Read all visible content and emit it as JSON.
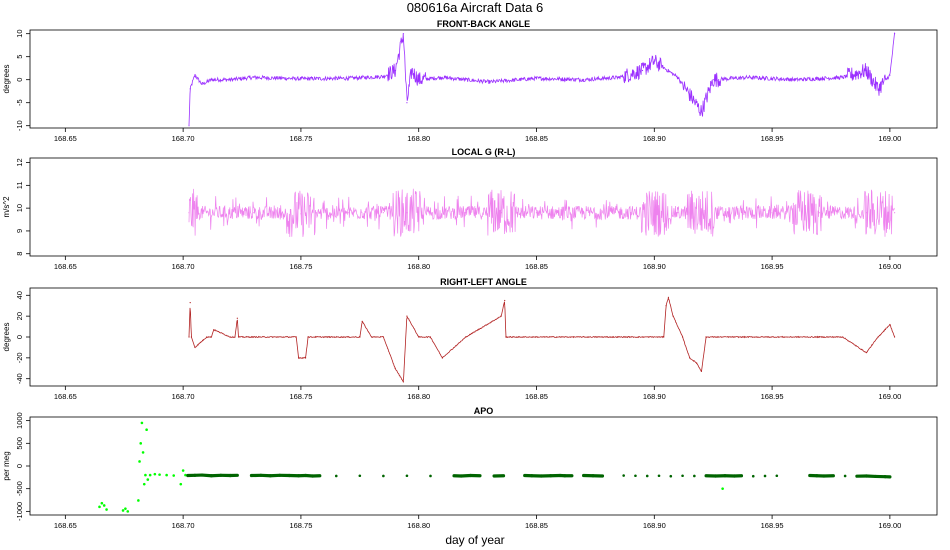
{
  "figure": {
    "title": "080616a    Aircraft Data 6",
    "xlabel": "day of year"
  },
  "chart_data": [
    {
      "type": "line",
      "title": "FRONT-BACK ANGLE",
      "ylabel": "degrees",
      "xlim": [
        168.635,
        169.02
      ],
      "ylim": [
        -10.5,
        10.8
      ],
      "xticks": [
        "168.65",
        "168.70",
        "168.75",
        "168.80",
        "168.85",
        "168.90",
        "168.95",
        "169.00"
      ],
      "yticks": [
        -10,
        -5,
        0,
        5,
        10
      ],
      "color": "#9b30ff",
      "series": [
        {
          "x": [
            168.7025,
            168.703,
            168.705,
            168.708,
            168.712,
            168.72,
            168.73,
            168.75,
            168.77,
            168.785,
            168.79,
            168.7935,
            168.795,
            168.797,
            168.8,
            168.81,
            168.83,
            168.85,
            168.87,
            168.885,
            168.895,
            168.9,
            168.91,
            168.92,
            168.925,
            168.94,
            168.96,
            168.98,
            168.99,
            168.995,
            169.0,
            169.002
          ],
          "y": [
            -10,
            -2,
            1,
            -1,
            0,
            0,
            0.5,
            0.2,
            0.3,
            0.7,
            2,
            10,
            -5,
            2,
            0,
            0.5,
            -0.5,
            0.3,
            0,
            0.5,
            2,
            4,
            0.5,
            -7,
            0,
            0.5,
            0,
            0.5,
            2,
            -2,
            1,
            10
          ]
        }
      ]
    },
    {
      "type": "line",
      "title": "LOCAL G (R-L)",
      "ylabel": "m/s^2",
      "xlim": [
        168.635,
        169.02
      ],
      "ylim": [
        7.9,
        12.2
      ],
      "xticks": [
        "168.65",
        "168.70",
        "168.75",
        "168.80",
        "168.85",
        "168.90",
        "168.95",
        "169.00"
      ],
      "yticks": [
        8,
        9,
        10,
        11,
        12
      ],
      "color": "#ee82ee",
      "series": [
        {
          "x": [
            168.7025,
            168.71,
            168.73,
            168.75,
            168.77,
            168.785,
            168.795,
            168.8,
            168.82,
            168.835,
            168.85,
            168.87,
            168.89,
            168.9,
            168.91,
            168.93,
            168.95,
            168.97,
            168.99,
            169.002
          ],
          "y": [
            9.8,
            9.8,
            9.8,
            9.75,
            9.8,
            9.8,
            9.8,
            9.8,
            9.8,
            9.8,
            9.8,
            9.8,
            9.8,
            9.8,
            9.8,
            9.8,
            9.8,
            9.8,
            9.8,
            9.8
          ]
        }
      ]
    },
    {
      "type": "line",
      "title": "RIGHT-LEFT ANGLE",
      "ylabel": "degrees",
      "xlim": [
        168.635,
        169.02
      ],
      "ylim": [
        -47,
        47
      ],
      "xticks": [
        "168.65",
        "168.70",
        "168.75",
        "168.80",
        "168.85",
        "168.90",
        "168.95",
        "169.00"
      ],
      "yticks": [
        -40,
        -20,
        0,
        20,
        40
      ],
      "color": "#b22222",
      "series": [
        {
          "x": [
            168.7025,
            168.703,
            168.7035,
            168.705,
            168.71,
            168.712,
            168.713,
            168.72,
            168.722,
            168.723,
            168.7235,
            168.73,
            168.74,
            168.748,
            168.749,
            168.752,
            168.753,
            168.76,
            168.77,
            168.775,
            168.776,
            168.78,
            168.785,
            168.79,
            168.7935,
            168.795,
            168.8,
            168.805,
            168.81,
            168.82,
            168.835,
            168.8365,
            168.837,
            168.84,
            168.86,
            168.88,
            168.895,
            168.904,
            168.905,
            168.906,
            168.908,
            168.912,
            168.915,
            168.918,
            168.92,
            168.922,
            168.925,
            168.94,
            168.97,
            168.98,
            168.99,
            168.995,
            169.0,
            169.002
          ],
          "y": [
            0,
            33,
            0,
            -10,
            0,
            0,
            7,
            0,
            0,
            18,
            0,
            0,
            0,
            0,
            -20,
            -20,
            0,
            0,
            0,
            0,
            15,
            0,
            0,
            -30,
            -43,
            20,
            0,
            0,
            -20,
            0,
            20,
            35,
            0,
            0,
            0,
            0,
            0,
            0,
            30,
            38,
            20,
            0,
            -20,
            -25,
            -33,
            0,
            0,
            0,
            0,
            0,
            -15,
            0,
            12,
            0
          ]
        }
      ]
    },
    {
      "type": "scatter",
      "title": "APO",
      "ylabel": "per meg",
      "xlim": [
        168.635,
        169.02
      ],
      "ylim": [
        -1080,
        1080
      ],
      "xticks": [
        "168.65",
        "168.70",
        "168.75",
        "168.80",
        "168.85",
        "168.90",
        "168.95",
        "169.00"
      ],
      "yticks": [
        -1000,
        -500,
        0,
        500,
        1000
      ],
      "series": [
        {
          "color": "#00ff00",
          "x": [
            168.6645,
            168.6655,
            168.6665,
            168.6675,
            168.6745,
            168.6755,
            168.6765,
            168.681,
            168.6815,
            168.682,
            168.6825,
            168.683,
            168.6835,
            168.684,
            168.6845,
            168.685,
            168.686,
            168.688,
            168.69,
            168.693,
            168.696,
            168.699,
            168.7,
            168.701,
            168.929
          ],
          "y": [
            -900,
            -820,
            -870,
            -960,
            -980,
            -940,
            -1000,
            -760,
            100,
            500,
            950,
            300,
            -400,
            -200,
            800,
            -300,
            -200,
            -180,
            -190,
            -200,
            -210,
            -400,
            -100,
            -200,
            -500
          ]
        },
        {
          "color": "#006400",
          "x": [
            168.702,
            168.705,
            168.708,
            168.712,
            168.716,
            168.72,
            168.723,
            168.729,
            168.733,
            168.737,
            168.741,
            168.745,
            168.749,
            168.752,
            168.755,
            168.758,
            168.765,
            168.775,
            168.785,
            168.795,
            168.805,
            168.815,
            168.818,
            168.822,
            168.826,
            168.832,
            168.836,
            168.845,
            168.848,
            168.852,
            168.856,
            168.86,
            168.862,
            168.865,
            168.87,
            168.874,
            168.878,
            168.887,
            168.892,
            168.897,
            168.902,
            168.907,
            168.912,
            168.917,
            168.922,
            168.926,
            168.93,
            168.934,
            168.937,
            168.942,
            168.947,
            168.952,
            168.966,
            168.969,
            168.972,
            168.976,
            168.981,
            168.986,
            168.99,
            168.994,
            168.998,
            169.0
          ],
          "y": [
            -210,
            -205,
            -200,
            -215,
            -205,
            -210,
            -205,
            -210,
            -205,
            -215,
            -205,
            -210,
            -215,
            -210,
            -220,
            -215,
            -220,
            -215,
            -220,
            -215,
            -220,
            -215,
            -220,
            -210,
            -215,
            -220,
            -215,
            -210,
            -215,
            -220,
            -215,
            -210,
            -215,
            -215,
            -210,
            -215,
            -220,
            -210,
            -215,
            -220,
            -215,
            -225,
            -215,
            -220,
            -215,
            -220,
            -215,
            -220,
            -215,
            -225,
            -220,
            -215,
            -210,
            -215,
            -220,
            -215,
            -220,
            -225,
            -220,
            -230,
            -235,
            -240
          ]
        }
      ]
    }
  ]
}
